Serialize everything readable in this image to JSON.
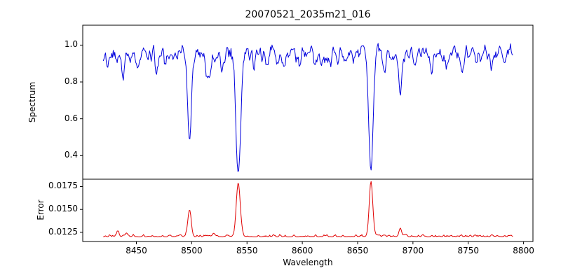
{
  "title": "20070521_2035m21_016",
  "chart_data": {
    "type": "line",
    "title": "20070521_2035m21_016",
    "xlabel": "Wavelength",
    "x_range": [
      8420,
      8790
    ],
    "x_step": 0.7,
    "xlim": [
      8401.5,
      8808.5
    ],
    "x_ticks": [
      8450,
      8500,
      8550,
      8600,
      8650,
      8700,
      8750,
      8800
    ],
    "x_tick_labels": [
      "8450",
      "8500",
      "8550",
      "8600",
      "8650",
      "8700",
      "8750",
      "8800"
    ],
    "noise_seed": 20070521,
    "legend": "none",
    "grid": false,
    "panels": [
      {
        "name": "spectrum",
        "ylabel": "Spectrum",
        "color": "#0000dd",
        "ylim": [
          0.272,
          1.108
        ],
        "y_ticks": [
          0.4,
          0.6,
          0.8,
          1.0
        ],
        "y_tick_labels": [
          "0.4",
          "0.6",
          "0.8",
          "1.0"
        ],
        "continuum": 0.955,
        "noise_amplitude": 0.075,
        "absorption_lines": [
          {
            "center": 8498.0,
            "depth": 0.48,
            "sigma": 1.7
          },
          {
            "center": 8542.1,
            "depth": 0.67,
            "sigma": 2.2
          },
          {
            "center": 8662.1,
            "depth": 0.67,
            "sigma": 2.0
          },
          {
            "center": 8688.6,
            "depth": 0.26,
            "sigma": 1.3
          },
          {
            "center": 8424.0,
            "depth": 0.1,
            "sigma": 1.2
          },
          {
            "center": 8438.0,
            "depth": 0.12,
            "sigma": 1.2
          },
          {
            "center": 8451.0,
            "depth": 0.06,
            "sigma": 1.1
          },
          {
            "center": 8468.0,
            "depth": 0.11,
            "sigma": 1.3
          },
          {
            "center": 8476.0,
            "depth": 0.07,
            "sigma": 1.1
          },
          {
            "center": 8515.0,
            "depth": 0.14,
            "sigma": 2.0
          },
          {
            "center": 8527.0,
            "depth": 0.06,
            "sigma": 1.1
          },
          {
            "center": 8556.0,
            "depth": 0.07,
            "sigma": 1.2
          },
          {
            "center": 8583.0,
            "depth": 0.06,
            "sigma": 1.1
          },
          {
            "center": 8598.0,
            "depth": 0.08,
            "sigma": 1.2
          },
          {
            "center": 8611.0,
            "depth": 0.05,
            "sigma": 1.0
          },
          {
            "center": 8625.0,
            "depth": 0.07,
            "sigma": 1.1
          },
          {
            "center": 8640.0,
            "depth": 0.06,
            "sigma": 1.1
          },
          {
            "center": 8674.0,
            "depth": 0.08,
            "sigma": 1.2
          },
          {
            "center": 8702.0,
            "depth": 0.07,
            "sigma": 1.1
          },
          {
            "center": 8717.0,
            "depth": 0.09,
            "sigma": 1.2
          },
          {
            "center": 8730.0,
            "depth": 0.06,
            "sigma": 1.1
          },
          {
            "center": 8744.0,
            "depth": 0.08,
            "sigma": 1.2
          },
          {
            "center": 8757.0,
            "depth": 0.07,
            "sigma": 1.1
          },
          {
            "center": 8772.0,
            "depth": 0.06,
            "sigma": 1.1
          }
        ]
      },
      {
        "name": "error",
        "ylabel": "Error",
        "color": "#e00000",
        "ylim": [
          0.0115,
          0.0183
        ],
        "y_ticks": [
          0.0125,
          0.015,
          0.0175
        ],
        "y_tick_labels": [
          "0.0125",
          "0.0150",
          "0.0175"
        ],
        "baseline": 0.01205,
        "noise_amplitude": 0.00035,
        "peaks": [
          {
            "center": 8498.0,
            "height": 0.0029,
            "sigma": 1.5
          },
          {
            "center": 8542.1,
            "height": 0.0059,
            "sigma": 1.8
          },
          {
            "center": 8662.1,
            "height": 0.006,
            "sigma": 1.6
          },
          {
            "center": 8688.6,
            "height": 0.0009,
            "sigma": 1.2
          },
          {
            "center": 8433.0,
            "height": 0.0005,
            "sigma": 1.2
          },
          {
            "center": 8441.0,
            "height": 0.0004,
            "sigma": 1.1
          },
          {
            "center": 8520.0,
            "height": 0.0003,
            "sigma": 1.5
          }
        ]
      }
    ]
  }
}
